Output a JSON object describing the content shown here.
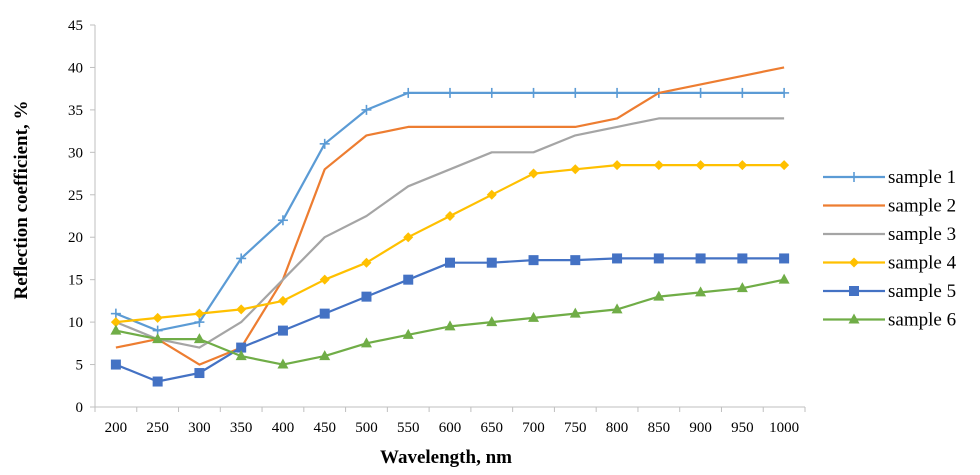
{
  "chart_data": {
    "type": "line",
    "title": "",
    "xlabel": "Wavelength, nm",
    "ylabel": "Reflection coefficient, %",
    "ylim": [
      0,
      45
    ],
    "yticks": [
      "0",
      "5",
      "10",
      "15",
      "20",
      "25",
      "30",
      "35",
      "40",
      "45"
    ],
    "categories": [
      "200",
      "250",
      "300",
      "350",
      "400",
      "450",
      "500",
      "550",
      "600",
      "650",
      "700",
      "750",
      "800",
      "850",
      "900",
      "950",
      "1000"
    ],
    "grid": false,
    "legend": "right",
    "series": [
      {
        "name": "sample 1",
        "color": "#5b9bd5",
        "marker": "plus",
        "values": [
          11,
          9,
          10,
          17.5,
          22,
          31,
          35,
          37,
          37,
          37,
          37,
          37,
          37,
          37,
          37,
          37,
          37
        ]
      },
      {
        "name": "sample 2",
        "color": "#ed7d31",
        "marker": "none",
        "values": [
          7,
          8,
          5,
          7,
          15,
          28,
          32,
          33,
          33,
          33,
          33,
          33,
          34,
          37,
          38,
          39,
          40
        ]
      },
      {
        "name": "sample 3",
        "color": "#a5a5a5",
        "marker": "none",
        "values": [
          10,
          8,
          7,
          10,
          15,
          20,
          22.5,
          26,
          28,
          30,
          30,
          32,
          33,
          34,
          34,
          34,
          34
        ]
      },
      {
        "name": "sample 4",
        "color": "#ffc000",
        "marker": "diamond",
        "values": [
          10,
          10.5,
          11,
          11.5,
          12.5,
          15,
          17,
          20,
          22.5,
          25,
          27.5,
          28,
          28.5,
          28.5,
          28.5,
          28.5,
          28.5
        ]
      },
      {
        "name": "sample 5",
        "color": "#4472c4",
        "marker": "square",
        "values": [
          5,
          3,
          4,
          7,
          9,
          11,
          13,
          15,
          17,
          17,
          17.3,
          17.3,
          17.5,
          17.5,
          17.5,
          17.5,
          17.5
        ]
      },
      {
        "name": "sample 6",
        "color": "#70ad47",
        "marker": "triangle",
        "values": [
          9,
          8,
          8,
          6,
          5,
          6,
          7.5,
          8.5,
          9.5,
          10,
          10.5,
          11,
          11.5,
          13,
          13.5,
          14,
          15
        ]
      }
    ]
  }
}
